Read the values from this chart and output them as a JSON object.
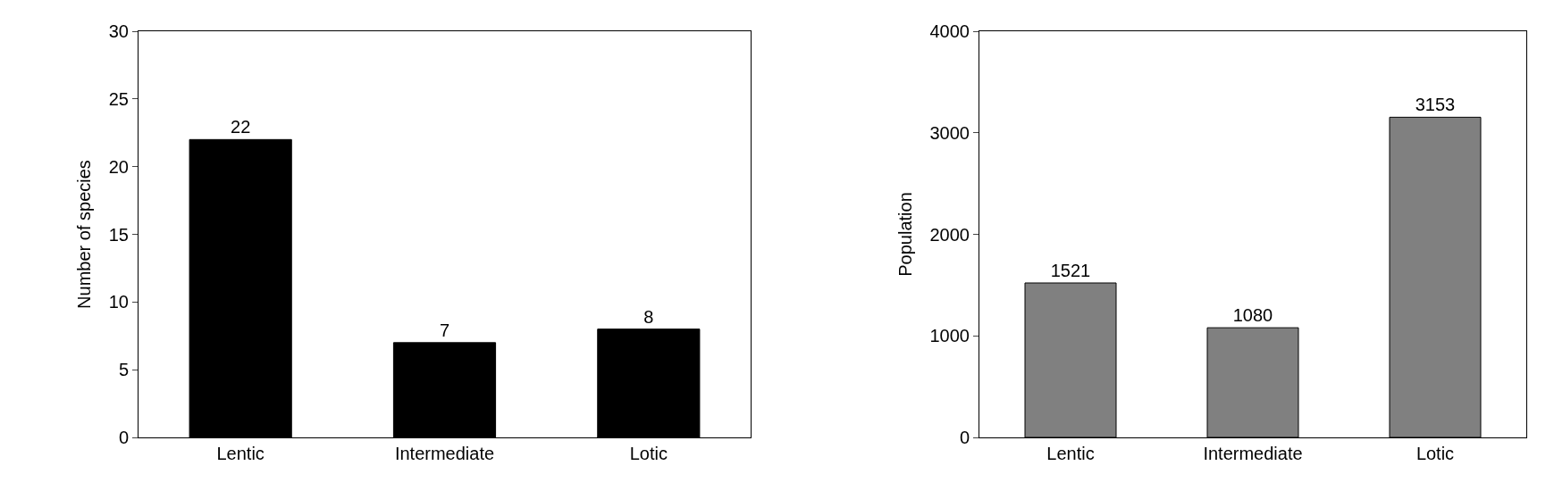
{
  "chart_data": [
    {
      "type": "bar",
      "categories": [
        "Lentic",
        "Intermediate",
        "Lotic"
      ],
      "values": [
        22,
        7,
        8
      ],
      "color": "#000000",
      "ylabel": "Number of species",
      "ylim": [
        0,
        30
      ],
      "yticks": [
        0,
        5,
        10,
        15,
        20,
        25,
        30
      ],
      "data_labels": true,
      "grid": false,
      "legend": false
    },
    {
      "type": "bar",
      "categories": [
        "Lentic",
        "Intermediate",
        "Lotic"
      ],
      "values": [
        1521,
        1080,
        3153
      ],
      "color": "#808080",
      "ylabel": "Population",
      "ylim": [
        0,
        4000
      ],
      "yticks": [
        0,
        1000,
        2000,
        3000,
        4000
      ],
      "data_labels": true,
      "grid": false,
      "legend": false
    }
  ]
}
